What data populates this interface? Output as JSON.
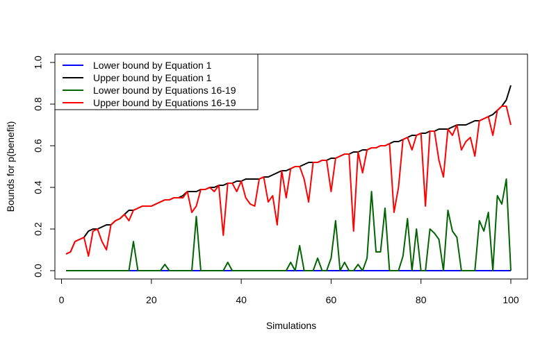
{
  "chart_data": {
    "type": "line",
    "title": "",
    "xlabel": "Simulations",
    "ylabel": "Bounds for p(benefit)",
    "xlim": [
      1,
      100
    ],
    "ylim": [
      0,
      1
    ],
    "x_ticks": [
      "0",
      "20",
      "40",
      "60",
      "80",
      "100"
    ],
    "y_ticks": [
      "0.0",
      "0.2",
      "0.4",
      "0.6",
      "0.8",
      "1.0"
    ],
    "legend_position": "top-left",
    "grid": false,
    "x": [
      1,
      2,
      3,
      4,
      5,
      6,
      7,
      8,
      9,
      10,
      11,
      12,
      13,
      14,
      15,
      16,
      17,
      18,
      19,
      20,
      21,
      22,
      23,
      24,
      25,
      26,
      27,
      28,
      29,
      30,
      31,
      32,
      33,
      34,
      35,
      36,
      37,
      38,
      39,
      40,
      41,
      42,
      43,
      44,
      45,
      46,
      47,
      48,
      49,
      50,
      51,
      52,
      53,
      54,
      55,
      56,
      57,
      58,
      59,
      60,
      61,
      62,
      63,
      64,
      65,
      66,
      67,
      68,
      69,
      70,
      71,
      72,
      73,
      74,
      75,
      76,
      77,
      78,
      79,
      80,
      81,
      82,
      83,
      84,
      85,
      86,
      87,
      88,
      89,
      90,
      91,
      92,
      93,
      94,
      95,
      96,
      97,
      98,
      99,
      100
    ],
    "series": [
      {
        "name": "Lower bound by Equation 1",
        "color": "#0000ff",
        "values": [
          0,
          0,
          0,
          0,
          0,
          0,
          0,
          0,
          0,
          0,
          0,
          0,
          0,
          0,
          0,
          0,
          0,
          0,
          0,
          0,
          0,
          0,
          0,
          0,
          0,
          0,
          0,
          0,
          0,
          0,
          0,
          0,
          0,
          0,
          0,
          0,
          0,
          0,
          0,
          0,
          0,
          0,
          0,
          0,
          0,
          0,
          0,
          0,
          0,
          0,
          0,
          0,
          0,
          0,
          0,
          0,
          0,
          0,
          0,
          0,
          0,
          0,
          0,
          0,
          0,
          0,
          0,
          0,
          0,
          0,
          0,
          0,
          0,
          0,
          0,
          0,
          0,
          0,
          0,
          0,
          0,
          0,
          0,
          0,
          0,
          0,
          0,
          0,
          0,
          0,
          0,
          0,
          0,
          0,
          0,
          0,
          0,
          0,
          0,
          0
        ]
      },
      {
        "name": "Upper bound by Equation 1",
        "color": "#000000",
        "values": [
          0.08,
          0.09,
          0.14,
          0.15,
          0.16,
          0.19,
          0.2,
          0.2,
          0.21,
          0.22,
          0.22,
          0.24,
          0.25,
          0.27,
          0.29,
          0.29,
          0.3,
          0.31,
          0.31,
          0.31,
          0.32,
          0.33,
          0.34,
          0.34,
          0.35,
          0.35,
          0.36,
          0.38,
          0.38,
          0.38,
          0.39,
          0.39,
          0.4,
          0.4,
          0.41,
          0.41,
          0.42,
          0.42,
          0.43,
          0.43,
          0.44,
          0.44,
          0.44,
          0.44,
          0.45,
          0.45,
          0.46,
          0.47,
          0.48,
          0.48,
          0.49,
          0.5,
          0.5,
          0.51,
          0.52,
          0.52,
          0.52,
          0.53,
          0.53,
          0.54,
          0.54,
          0.55,
          0.56,
          0.56,
          0.57,
          0.57,
          0.58,
          0.58,
          0.59,
          0.59,
          0.6,
          0.6,
          0.61,
          0.62,
          0.62,
          0.63,
          0.64,
          0.65,
          0.65,
          0.66,
          0.66,
          0.67,
          0.67,
          0.68,
          0.68,
          0.68,
          0.69,
          0.7,
          0.7,
          0.7,
          0.71,
          0.72,
          0.72,
          0.73,
          0.74,
          0.75,
          0.77,
          0.79,
          0.82,
          0.89
        ]
      },
      {
        "name": "Lower bound by Equations 16-19",
        "color": "#006400",
        "values": [
          0,
          0,
          0,
          0,
          0,
          0,
          0,
          0,
          0,
          0,
          0,
          0,
          0,
          0,
          0,
          0.14,
          0,
          0,
          0,
          0,
          0,
          0,
          0.03,
          0,
          0,
          0,
          0,
          0,
          0,
          0.26,
          0,
          0,
          0,
          0,
          0,
          0,
          0.04,
          0,
          0,
          0,
          0,
          0,
          0,
          0,
          0,
          0,
          0,
          0,
          0,
          0,
          0.04,
          0,
          0.12,
          0,
          0,
          0,
          0.06,
          0,
          0,
          0.06,
          0.24,
          0,
          0.04,
          0,
          0,
          0.03,
          0,
          0.06,
          0.38,
          0.09,
          0.09,
          0.3,
          0,
          0,
          0,
          0.07,
          0.25,
          0,
          0.2,
          0,
          0,
          0.2,
          0.18,
          0.15,
          0,
          0.29,
          0.19,
          0.16,
          0,
          0,
          0,
          0,
          0.24,
          0.19,
          0.28,
          0,
          0.36,
          0.32,
          0.44,
          0
        ]
      },
      {
        "name": "Upper bound by Equations 16-19",
        "color": "#ff0000",
        "values": [
          0.08,
          0.09,
          0.14,
          0.15,
          0.16,
          0.07,
          0.19,
          0.2,
          0.14,
          0.1,
          0.22,
          0.24,
          0.25,
          0.27,
          0.24,
          0.29,
          0.3,
          0.31,
          0.31,
          0.31,
          0.32,
          0.33,
          0.34,
          0.34,
          0.35,
          0.35,
          0.35,
          0.38,
          0.28,
          0.31,
          0.39,
          0.39,
          0.4,
          0.38,
          0.41,
          0.17,
          0.42,
          0.42,
          0.38,
          0.43,
          0.35,
          0.32,
          0.31,
          0.44,
          0.45,
          0.33,
          0.36,
          0.22,
          0.48,
          0.35,
          0.49,
          0.5,
          0.5,
          0.44,
          0.33,
          0.52,
          0.52,
          0.53,
          0.53,
          0.38,
          0.54,
          0.55,
          0.56,
          0.56,
          0.19,
          0.57,
          0.47,
          0.58,
          0.59,
          0.59,
          0.6,
          0.6,
          0.61,
          0.28,
          0.4,
          0.63,
          0.64,
          0.58,
          0.65,
          0.66,
          0.31,
          0.67,
          0.67,
          0.53,
          0.45,
          0.68,
          0.65,
          0.7,
          0.58,
          0.62,
          0.64,
          0.55,
          0.72,
          0.73,
          0.74,
          0.65,
          0.77,
          0.79,
          0.79,
          0.7
        ]
      }
    ]
  }
}
